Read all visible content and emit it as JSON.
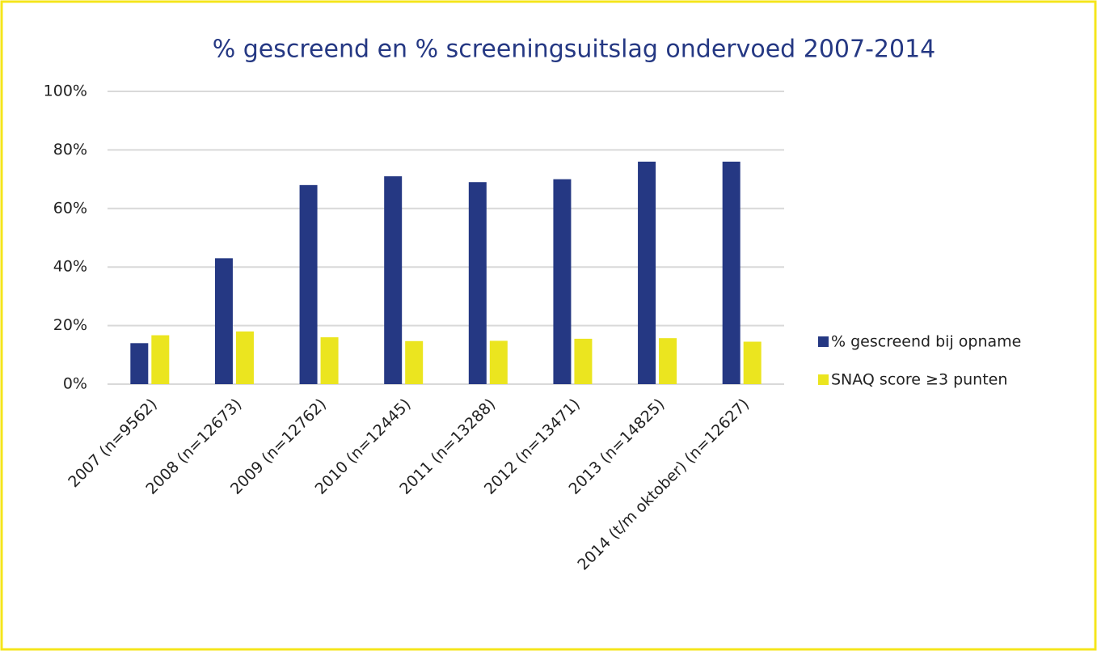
{
  "chart_data": {
    "type": "bar",
    "title": "% gescreend en % screeningsuitslag ondervoed 2007-2014",
    "categories": [
      "2007 (n=9562)",
      "2008 (n=12673)",
      "2009 (n=12762)",
      "2010 (n=12445)",
      "2011 (n=13288)",
      "2012 (n=13471)",
      "2013 (n=14825)",
      "2014 (t/m oktober) (n=12627)"
    ],
    "series": [
      {
        "name": "% gescreend bij opname",
        "color": "#253883",
        "values": [
          14,
          43,
          68,
          71,
          69,
          70,
          76,
          76
        ]
      },
      {
        "name": "SNAQ score ≥3 punten",
        "color": "#ebe51f",
        "values": [
          16.7,
          18,
          16,
          14.7,
          14.8,
          15.5,
          15.7,
          14.5
        ]
      }
    ],
    "ylim": [
      0,
      100
    ],
    "yticks": [
      {
        "value": 0,
        "label": "0%"
      },
      {
        "value": 20,
        "label": "20%"
      },
      {
        "value": 40,
        "label": "40%"
      },
      {
        "value": 60,
        "label": "60%"
      },
      {
        "value": 80,
        "label": "80%"
      },
      {
        "value": 100,
        "label": "100%"
      }
    ],
    "grid": true,
    "legend": "right"
  }
}
